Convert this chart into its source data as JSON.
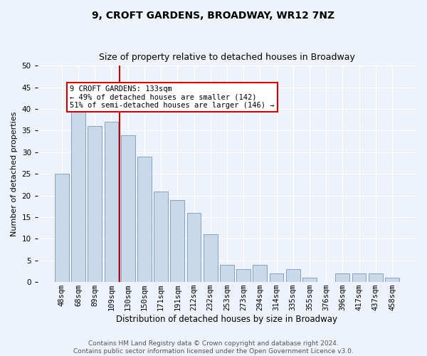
{
  "title1": "9, CROFT GARDENS, BROADWAY, WR12 7NZ",
  "title2": "Size of property relative to detached houses in Broadway",
  "xlabel": "Distribution of detached houses by size in Broadway",
  "ylabel": "Number of detached properties",
  "categories": [
    "48sqm",
    "68sqm",
    "89sqm",
    "109sqm",
    "130sqm",
    "150sqm",
    "171sqm",
    "191sqm",
    "212sqm",
    "232sqm",
    "253sqm",
    "273sqm",
    "294sqm",
    "314sqm",
    "335sqm",
    "355sqm",
    "376sqm",
    "396sqm",
    "417sqm",
    "437sqm",
    "458sqm"
  ],
  "values": [
    25,
    40,
    36,
    37,
    34,
    29,
    21,
    19,
    16,
    11,
    4,
    3,
    4,
    2,
    3,
    1,
    0,
    2,
    2,
    2,
    1
  ],
  "bar_color": "#c9d9ea",
  "bar_edge_color": "#7799bb",
  "vline_x_idx": 4,
  "vline_color": "#cc0000",
  "annotation_line1": "9 CROFT GARDENS: 133sqm",
  "annotation_line2": "← 49% of detached houses are smaller (142)",
  "annotation_line3": "51% of semi-detached houses are larger (146) →",
  "annotation_box_color": "#ffffff",
  "annotation_box_edge": "#cc0000",
  "ylim": [
    0,
    50
  ],
  "yticks": [
    0,
    5,
    10,
    15,
    20,
    25,
    30,
    35,
    40,
    45,
    50
  ],
  "footer1": "Contains HM Land Registry data © Crown copyright and database right 2024.",
  "footer2": "Contains public sector information licensed under the Open Government Licence v3.0.",
  "bg_color": "#eef2fb",
  "plot_bg_color": "#eef2fb",
  "title1_fontsize": 10,
  "title2_fontsize": 9,
  "xlabel_fontsize": 8.5,
  "ylabel_fontsize": 8,
  "tick_fontsize": 7.5,
  "annotation_fontsize": 7.5,
  "footer_fontsize": 6.5
}
